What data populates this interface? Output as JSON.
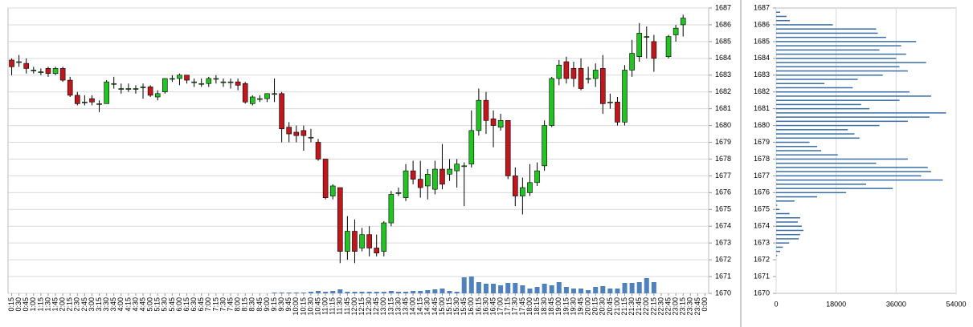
{
  "chart_data": [
    {
      "type": "candlestick",
      "categories": [
        "0:15",
        "0:30",
        "0:45",
        "1:00",
        "1:15",
        "1:30",
        "1:45",
        "2:00",
        "2:15",
        "2:30",
        "2:45",
        "3:00",
        "3:15",
        "3:30",
        "3:45",
        "4:00",
        "4:15",
        "4:30",
        "4:45",
        "5:00",
        "5:15",
        "5:30",
        "5:45",
        "6:00",
        "6:15",
        "6:30",
        "6:45",
        "7:00",
        "7:15",
        "7:30",
        "7:45",
        "8:00",
        "8:15",
        "8:30",
        "8:45",
        "9:00",
        "9:15",
        "9:30",
        "9:45",
        "10:00",
        "10:15",
        "10:30",
        "10:45",
        "11:00",
        "11:15",
        "11:30",
        "11:45",
        "12:00",
        "12:15",
        "12:30",
        "12:45",
        "13:00",
        "13:15",
        "13:30",
        "13:45",
        "14:00",
        "14:15",
        "14:30",
        "14:45",
        "15:00",
        "15:15",
        "15:30",
        "15:45",
        "16:00",
        "16:15",
        "16:30",
        "16:45",
        "17:00",
        "17:15",
        "17:30",
        "17:45",
        "18:00",
        "18:15",
        "18:30",
        "18:45",
        "19:00",
        "19:15",
        "19:30",
        "19:45",
        "20:00",
        "20:15",
        "20:30",
        "20:45",
        "21:00",
        "21:15",
        "21:30",
        "21:45",
        "22:00",
        "22:15",
        "22:30",
        "22:45",
        "23:00",
        "23:15",
        "23:30",
        "23:45",
        "0:00"
      ],
      "open": [
        1683.9,
        1683.8,
        1683.7,
        1683.3,
        1683.2,
        1683.4,
        1683.1,
        1683.4,
        1682.7,
        1681.8,
        1681.4,
        1681.6,
        1681.3,
        1681.3,
        1682.5,
        1682.2,
        1682.2,
        1682.2,
        1682.3,
        1682.3,
        1681.7,
        1682.0,
        1682.8,
        1682.8,
        1683.0,
        1682.6,
        1682.5,
        1682.5,
        1682.8,
        1682.6,
        1682.6,
        1682.6,
        1682.5,
        1681.3,
        1681.6,
        1681.6,
        1681.9,
        1681.9,
        1679.9,
        1679.6,
        1679.7,
        1679.3,
        1679.0,
        1678.0,
        1675.8,
        1676.3,
        1672.5,
        1673.7,
        1672.7,
        1673.5,
        1672.7,
        1672.5,
        1674.2,
        1676.0,
        1675.7,
        1677.3,
        1676.8,
        1676.4,
        1676.2,
        1677.4,
        1677.1,
        1677.3,
        1677.6,
        1677.7,
        1679.7,
        1681.5,
        1680.4,
        1679.9,
        1680.3,
        1677.0,
        1675.8,
        1676.0,
        1676.6,
        1677.6,
        1680.0,
        1682.8,
        1683.8,
        1683.4,
        1683.4,
        1682.8,
        1682.8,
        1683.4,
        1681.4,
        1681.4,
        1680.2,
        1683.3,
        1684.1,
        1685.3,
        1685.0,
        null,
        1684.1,
        1685.4,
        1686.0,
        null,
        null,
        null
      ],
      "high": [
        1684.0,
        1684.2,
        1684.0,
        1683.5,
        1683.4,
        1683.5,
        1683.5,
        1683.5,
        1682.9,
        1682.0,
        1681.8,
        1681.8,
        1681.5,
        1682.7,
        1682.9,
        1682.5,
        1682.5,
        1682.4,
        1682.5,
        1682.4,
        1682.1,
        1682.8,
        1683.0,
        1683.1,
        1683.0,
        1682.8,
        1682.8,
        1682.9,
        1683.0,
        1682.8,
        1682.8,
        1682.8,
        1682.6,
        1681.8,
        1681.8,
        1681.9,
        1682.8,
        1682.0,
        1680.2,
        1680.0,
        1680.0,
        1679.8,
        1679.2,
        1678.0,
        1676.5,
        1676.3,
        1674.6,
        1674.4,
        1673.9,
        1674.0,
        1673.5,
        1674.3,
        1676.1,
        1676.3,
        1677.7,
        1677.9,
        1677.9,
        1677.4,
        1677.9,
        1678.9,
        1678.0,
        1678.0,
        1677.8,
        1680.9,
        1682.2,
        1682.0,
        1680.9,
        1680.7,
        1680.3,
        1677.5,
        1676.9,
        1677.7,
        1677.8,
        1680.3,
        1682.9,
        1683.9,
        1684.1,
        1683.8,
        1684.0,
        1683.5,
        1683.7,
        1684.2,
        1681.9,
        1681.7,
        1683.6,
        1685.1,
        1686.1,
        1685.9,
        1685.4,
        null,
        1685.4,
        1686.0,
        1686.6,
        null,
        null,
        null
      ],
      "low": [
        1683.0,
        1683.5,
        1683.1,
        1683.1,
        1683.0,
        1682.9,
        1683.0,
        1682.6,
        1681.7,
        1681.2,
        1681.2,
        1681.2,
        1680.8,
        1681.3,
        1682.2,
        1681.9,
        1682.0,
        1681.9,
        1681.6,
        1681.7,
        1681.5,
        1681.9,
        1682.6,
        1682.4,
        1682.5,
        1682.3,
        1682.3,
        1682.3,
        1682.5,
        1682.3,
        1682.2,
        1682.1,
        1681.3,
        1681.2,
        1681.4,
        1681.4,
        1681.4,
        1679.0,
        1679.0,
        1679.0,
        1678.5,
        1679.0,
        1677.9,
        1675.6,
        1675.6,
        1671.8,
        1672.0,
        1671.8,
        1672.5,
        1672.2,
        1672.2,
        1672.2,
        1674.0,
        1675.8,
        1675.5,
        1676.5,
        1675.7,
        1675.6,
        1675.9,
        1676.2,
        1676.7,
        1676.3,
        1675.2,
        1677.5,
        1679.4,
        1679.5,
        1678.7,
        1679.7,
        1676.8,
        1675.2,
        1674.7,
        1675.8,
        1676.4,
        1677.3,
        1679.9,
        1682.4,
        1682.5,
        1682.3,
        1682.1,
        1682.5,
        1682.3,
        1680.7,
        1681.0,
        1680.0,
        1680.0,
        1682.9,
        1683.8,
        1684.0,
        1683.2,
        null,
        1684.0,
        1685.0,
        1685.3,
        null,
        null,
        null
      ],
      "close": [
        1683.5,
        1683.8,
        1683.4,
        1683.3,
        1683.2,
        1683.1,
        1683.4,
        1682.7,
        1681.8,
        1681.3,
        1681.4,
        1681.4,
        1681.3,
        1682.6,
        1682.5,
        1682.2,
        1682.2,
        1682.2,
        1682.3,
        1681.8,
        1681.9,
        1682.8,
        1682.8,
        1683.0,
        1682.7,
        1682.6,
        1682.5,
        1682.8,
        1682.8,
        1682.6,
        1682.6,
        1682.4,
        1681.4,
        1681.7,
        1681.6,
        1681.9,
        1681.9,
        1679.8,
        1679.5,
        1679.4,
        1679.4,
        1679.3,
        1678.0,
        1675.7,
        1676.4,
        1672.5,
        1673.7,
        1672.5,
        1673.5,
        1672.7,
        1672.4,
        1674.2,
        1675.9,
        1676.0,
        1677.3,
        1676.8,
        1676.3,
        1677.1,
        1677.4,
        1676.5,
        1677.4,
        1677.7,
        1677.6,
        1679.7,
        1681.5,
        1680.3,
        1680.0,
        1680.3,
        1677.0,
        1675.8,
        1676.3,
        1676.6,
        1677.3,
        1680.0,
        1682.8,
        1683.6,
        1682.8,
        1682.8,
        1682.2,
        1682.8,
        1683.3,
        1681.3,
        1681.4,
        1680.2,
        1683.3,
        1684.3,
        1685.5,
        1685.3,
        1684.0,
        null,
        1685.3,
        1685.8,
        1686.4,
        null,
        null,
        null
      ],
      "volume": [
        null,
        null,
        null,
        null,
        null,
        null,
        null,
        null,
        null,
        null,
        null,
        null,
        null,
        null,
        null,
        null,
        null,
        null,
        null,
        null,
        null,
        null,
        null,
        null,
        null,
        null,
        null,
        null,
        null,
        null,
        null,
        null,
        null,
        null,
        null,
        null,
        1,
        1,
        1,
        1,
        1,
        2,
        3,
        2,
        3,
        5,
        2,
        2,
        2,
        2,
        2,
        2,
        3,
        2,
        2,
        3,
        3,
        4,
        5,
        6,
        3,
        2,
        20,
        21,
        14,
        12,
        12,
        10,
        13,
        13,
        10,
        6,
        8,
        12,
        10,
        14,
        8,
        6,
        6,
        4,
        8,
        9,
        6,
        6,
        13,
        13,
        14,
        19,
        14,
        null,
        null,
        null,
        null,
        null,
        null,
        null
      ],
      "up_color": "#22c322",
      "down_color": "#c0171d",
      "volume_color": "#4f81bd",
      "ylim": [
        1670,
        1687
      ],
      "yticks": [
        1670,
        1671,
        1672,
        1673,
        1674,
        1675,
        1676,
        1677,
        1678,
        1679,
        1680,
        1681,
        1682,
        1683,
        1684,
        1685,
        1686,
        1687
      ],
      "grid": true
    },
    {
      "type": "barh",
      "y": [
        1686.75,
        1686.5,
        1686.25,
        1686.0,
        1685.75,
        1685.5,
        1685.25,
        1685.0,
        1684.75,
        1684.5,
        1684.25,
        1684.0,
        1683.75,
        1683.5,
        1683.25,
        1683.0,
        1682.75,
        1682.5,
        1682.25,
        1682.0,
        1681.75,
        1681.5,
        1681.25,
        1681.0,
        1680.75,
        1680.5,
        1680.25,
        1680.0,
        1679.75,
        1679.5,
        1679.25,
        1679.0,
        1678.75,
        1678.5,
        1678.25,
        1678.0,
        1677.75,
        1677.5,
        1677.25,
        1677.0,
        1676.75,
        1676.5,
        1676.25,
        1676.0,
        1675.75,
        1675.5,
        1675.25,
        1675.0,
        1674.75,
        1674.5,
        1674.25,
        1674.0,
        1673.75,
        1673.5,
        1673.25,
        1673.0,
        1672.75,
        1672.5,
        1672.25
      ],
      "values": [
        1200,
        3100,
        4100,
        17000,
        30000,
        30500,
        33000,
        42000,
        37500,
        31000,
        39000,
        36000,
        45000,
        37000,
        39500,
        32000,
        24500,
        14500,
        23000,
        40000,
        46500,
        37000,
        25500,
        28000,
        51000,
        46000,
        39500,
        31000,
        21500,
        23500,
        25000,
        10000,
        12300,
        13500,
        18500,
        39500,
        30000,
        45500,
        46500,
        43500,
        50000,
        27000,
        35000,
        21000,
        12300,
        5500,
        300,
        1000,
        4000,
        7200,
        6500,
        7700,
        8200,
        7200,
        6800,
        3900,
        2000,
        1200,
        300
      ],
      "color": "#3a6ea5",
      "xlim": [
        0,
        54000
      ],
      "xticks": [
        0,
        18000,
        36000,
        54000
      ],
      "ylim": [
        1670,
        1687
      ],
      "yticks": [
        1670,
        1671,
        1672,
        1673,
        1674,
        1675,
        1676,
        1677,
        1678,
        1679,
        1680,
        1681,
        1682,
        1683,
        1684,
        1685,
        1686,
        1687
      ],
      "grid": true
    }
  ]
}
